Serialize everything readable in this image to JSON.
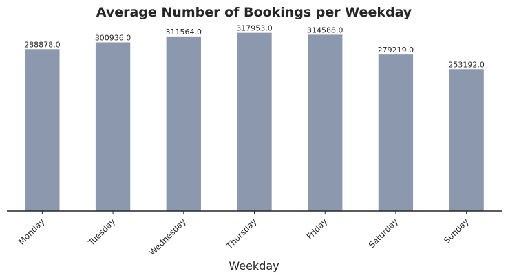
{
  "chart_data": {
    "type": "bar",
    "title": "Average Number of Bookings per Weekday",
    "xlabel": "Weekday",
    "ylabel": "",
    "categories": [
      "Monday",
      "Tuesday",
      "Wednesday",
      "Thursday",
      "Friday",
      "Saturday",
      "Sunday"
    ],
    "values": [
      288878.0,
      300936.0,
      311564.0,
      317953.0,
      314588.0,
      279219.0,
      253192.0
    ],
    "data_labels": [
      "288878.0",
      "300936.0",
      "311564.0",
      "317953.0",
      "314588.0",
      "279219.0",
      "253192.0"
    ],
    "ylim": [
      0,
      320000
    ],
    "grid": false,
    "bar_color": "#8c98ad",
    "axis_color": "#262626"
  }
}
